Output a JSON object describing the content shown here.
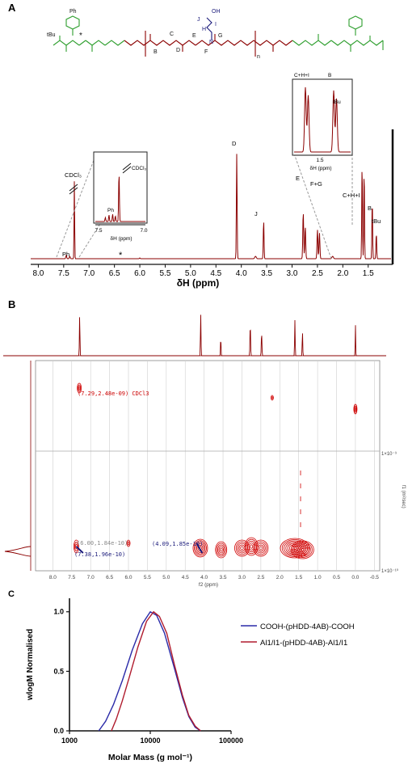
{
  "colors": {
    "spectrum": "#8b0000",
    "green": "#2e9e2e",
    "navy": "#1a1a7a",
    "legendBlue": "#2a2aa8",
    "legendRed": "#b01c2e",
    "grey": "#777777"
  },
  "panelA": {
    "letter": "A",
    "structure": {
      "ph": "Ph",
      "tbu_left": "tBu",
      "star": "*",
      "oh": "OH",
      "j": "J",
      "i": "I",
      "h": "H",
      "g": "G",
      "e": "E",
      "f": "F",
      "n": "N",
      "c": "C",
      "b": "B",
      "d": "D",
      "n_sub": "n"
    },
    "peaks": {
      "ph": "Ph",
      "cdcl3": "CDCl₃",
      "star": "*",
      "d": "D",
      "j": "J",
      "e": "E",
      "fg": "F+G",
      "chi": "C+H+I",
      "b": "B",
      "tbu": "tBu"
    },
    "xticks": [
      "8.0",
      "7.5",
      "7.0",
      "6.5",
      "6.0",
      "5.5",
      "5.0",
      "4.5",
      "4.0",
      "3.5",
      "3.0",
      "2.5",
      "2.0",
      "1.5"
    ],
    "xlabel": "δH (ppm)",
    "inset1": {
      "cdcl3": "CDCl₃",
      "ph": "Ph",
      "ticks": [
        "7.5",
        "7.0"
      ],
      "xlabel": "δH (ppm)"
    },
    "inset2": {
      "chi": "C+H+I",
      "b": "B",
      "tbu": "tBu",
      "tick": "1.5",
      "xlabel": "δH (ppm)"
    }
  },
  "panelB": {
    "letter": "B",
    "annotations": {
      "cdcl3": "(7.29,2.48e-09) CDCl3",
      "a600": "(6.00,1.84e-10)",
      "a738": "(7.38,1.96e-10)",
      "a409": "(4.09,1.85e-10)"
    },
    "xticks": [
      "8.0",
      "7.5",
      "7.0",
      "6.5",
      "6.0",
      "5.5",
      "5.0",
      "4.5",
      "4.0",
      "3.5",
      "3.0",
      "2.5",
      "2.0",
      "1.5",
      "1.0",
      "0.5",
      "0.0",
      "-0.5"
    ],
    "xlabel": "f2 (ppm)",
    "ylabel": "f1 (m²/sec)",
    "yticks": [
      "1×10⁻⁹",
      "1×10⁻¹⁰"
    ]
  },
  "chart_data": {
    "type": "line",
    "letter": "C",
    "xlabel": "Molar Mass (g mol⁻¹)",
    "ylabel": "wlogM Normalised",
    "xscale": "log",
    "xlim": [
      1000,
      100000
    ],
    "ylim": [
      0,
      1.1
    ],
    "xticks": [
      "1000",
      "10000",
      "100000"
    ],
    "yticks": [
      "0.0",
      "0.5",
      "1.0"
    ],
    "legend_position": "right",
    "series": [
      {
        "name": "COOH-(pHDD-4AB)-COOH",
        "color": "#2a2aa8",
        "x": [
          2300,
          2800,
          3500,
          4500,
          6000,
          8000,
          10000,
          12000,
          15000,
          20000,
          25000,
          30000,
          36000,
          42000
        ],
        "y": [
          0.0,
          0.08,
          0.22,
          0.42,
          0.68,
          0.9,
          1.0,
          0.97,
          0.82,
          0.52,
          0.28,
          0.12,
          0.03,
          0.0
        ]
      },
      {
        "name": "Al1/I1-(pHDD-4AB)-Al1/I1",
        "color": "#b01c2e",
        "x": [
          3300,
          3800,
          4500,
          5500,
          7000,
          9000,
          11000,
          13000,
          16000,
          20000,
          25000,
          30000,
          36000,
          42000
        ],
        "y": [
          0.0,
          0.1,
          0.25,
          0.45,
          0.7,
          0.92,
          1.0,
          0.96,
          0.82,
          0.55,
          0.3,
          0.13,
          0.04,
          0.0
        ]
      }
    ]
  }
}
